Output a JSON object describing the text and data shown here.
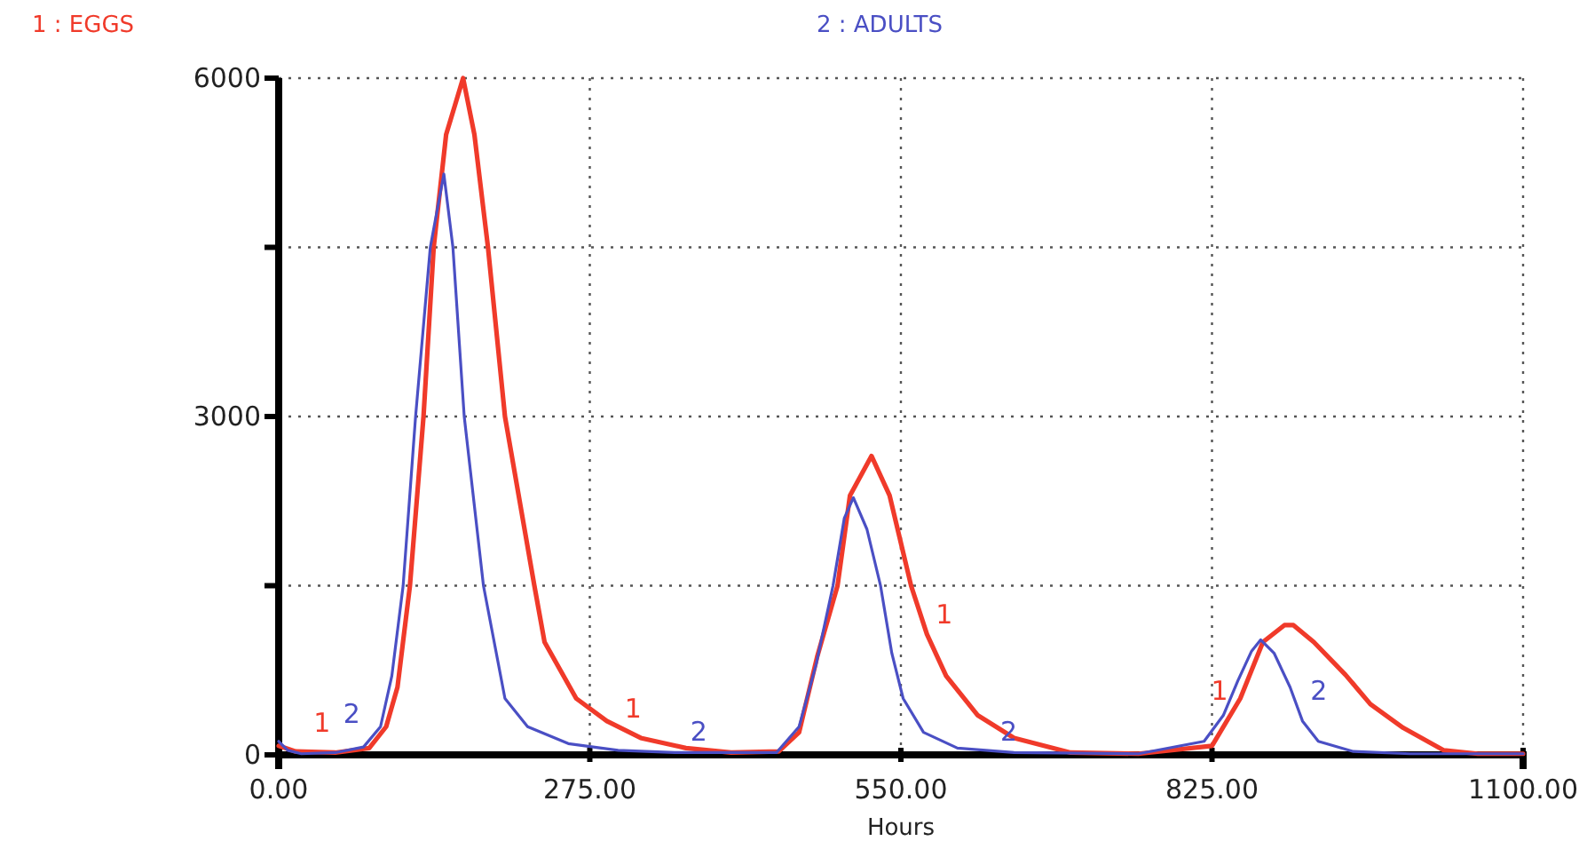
{
  "chart_data": {
    "type": "line",
    "xlabel": "Hours",
    "xlim": [
      0,
      1100
    ],
    "xticks": [
      {
        "value": 0,
        "label": "0.00"
      },
      {
        "value": 275,
        "label": "275.00"
      },
      {
        "value": 550,
        "label": "550.00"
      },
      {
        "value": 825,
        "label": "825.00"
      },
      {
        "value": 1100,
        "label": "1100.00"
      }
    ],
    "ylim": [
      0,
      6000
    ],
    "yticks": [
      0,
      {
        "value": 1500,
        "label": null
      },
      3000,
      {
        "value": 4500,
        "label": null
      },
      6000
    ],
    "grid": true,
    "legend": "top",
    "line_style": "solid",
    "series": [
      {
        "name": "1 : EGGS",
        "color": "#f03a2a",
        "x": [
          0,
          15,
          50,
          80,
          95,
          105,
          116,
          128,
          137,
          148,
          163,
          173,
          185,
          200,
          226,
          235,
          263,
          290,
          320,
          360,
          400,
          442,
          460,
          476,
          494,
          505,
          524,
          540,
          559,
          573,
          590,
          618,
          650,
          700,
          760,
          825,
          850,
          870,
          889,
          897,
          915,
          943,
          965,
          994,
          1030,
          1060,
          1100
        ],
        "values": [
          80,
          30,
          20,
          60,
          250,
          600,
          1500,
          3000,
          4500,
          5500,
          6000,
          5500,
          4500,
          3000,
          1500,
          1000,
          500,
          300,
          150,
          60,
          20,
          30,
          200,
          870,
          1500,
          2300,
          2650,
          2300,
          1500,
          1070,
          700,
          350,
          150,
          20,
          10,
          80,
          500,
          1000,
          1150,
          1150,
          1000,
          710,
          450,
          240,
          40,
          10,
          10
        ]
      },
      {
        "name": "2 : ADULTS",
        "color": "#4a4fc4",
        "x": [
          0,
          8,
          20,
          50,
          75,
          90,
          100,
          110,
          121,
          134,
          146,
          154,
          164,
          181,
          200,
          220,
          256,
          300,
          350,
          440,
          460,
          475,
          490,
          500,
          508,
          520,
          532,
          542,
          552,
          570,
          600,
          650,
          760,
          818,
          835,
          848,
          860,
          868,
          880,
          894,
          905,
          919,
          950,
          1000,
          1100
        ],
        "values": [
          120,
          40,
          10,
          20,
          70,
          250,
          700,
          1500,
          3000,
          4500,
          5150,
          4500,
          3000,
          1500,
          500,
          250,
          100,
          40,
          20,
          20,
          250,
          800,
          1500,
          2100,
          2280,
          2000,
          1500,
          900,
          500,
          200,
          60,
          20,
          10,
          120,
          350,
          660,
          920,
          1020,
          900,
          600,
          300,
          120,
          30,
          10,
          10
        ]
      }
    ],
    "annotations": [
      {
        "text": "1",
        "x": 23,
        "y": 110
      },
      {
        "text": "2",
        "x": 80,
        "y": 190
      },
      {
        "text": "1",
        "x": 298,
        "y": 240
      },
      {
        "text": "2",
        "x": 356,
        "y": 30
      },
      {
        "text": "1",
        "x": 573,
        "y": 1070
      },
      {
        "text": "2",
        "x": 630,
        "y": 30
      },
      {
        "text": "1",
        "x": 847,
        "y": 390
      },
      {
        "text": "2",
        "x": 904,
        "y": 390
      }
    ]
  }
}
